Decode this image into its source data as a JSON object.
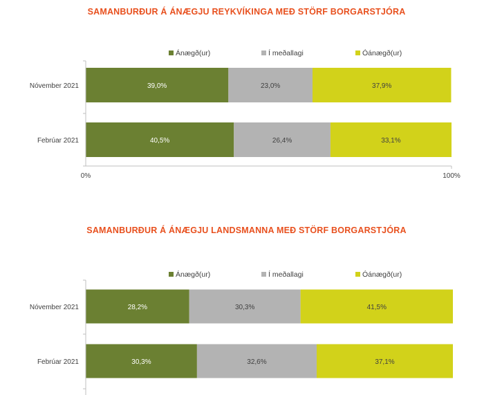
{
  "chart_data": [
    {
      "type": "bar",
      "orientation": "horizontal",
      "stacked": true,
      "percent": true,
      "title": "SAMANBURÐUR Á ÁNÆGJU REYKVÍKINGA MEÐ STÖRF BORGARSTJÓRA",
      "categories": [
        "Nóvember 2021",
        "Febrúar 2021"
      ],
      "series": [
        {
          "name": "Ánægð(ur)",
          "values": [
            39.0,
            40.5
          ],
          "labels": [
            "39,0%",
            "40,5%"
          ],
          "color": "#6b8032"
        },
        {
          "name": "Í meðallagi",
          "values": [
            23.0,
            26.4
          ],
          "labels": [
            "23,0%",
            "26,4%"
          ],
          "color": "#b3b3b3"
        },
        {
          "name": "Óánægð(ur)",
          "values": [
            37.9,
            33.1
          ],
          "labels": [
            "37,9%",
            "33,1%"
          ],
          "color": "#d2d21a"
        }
      ],
      "xlim": [
        0,
        100
      ],
      "xticks": [
        "0%",
        "100%"
      ],
      "legend": "top",
      "grid": false
    },
    {
      "type": "bar",
      "orientation": "horizontal",
      "stacked": true,
      "percent": true,
      "title": "SAMANBURÐUR Á ÁNÆGJU LANDSMANNA MEÐ STÖRF BORGARSTJÓRA",
      "categories": [
        "Nóvember 2021",
        "Febrúar 2021"
      ],
      "series": [
        {
          "name": "Ánægð(ur)",
          "values": [
            28.2,
            30.3
          ],
          "labels": [
            "28,2%",
            "30,3%"
          ],
          "color": "#6b8032"
        },
        {
          "name": "Í meðallagi",
          "values": [
            30.3,
            32.6
          ],
          "labels": [
            "30,3%",
            "32,6%"
          ],
          "color": "#b3b3b3"
        },
        {
          "name": "Óánægð(ur)",
          "values": [
            41.5,
            37.1
          ],
          "labels": [
            "41,5%",
            "37,1%"
          ],
          "color": "#d2d21a"
        }
      ],
      "xlim": [
        0,
        100
      ],
      "legend": "top",
      "grid": false
    }
  ]
}
